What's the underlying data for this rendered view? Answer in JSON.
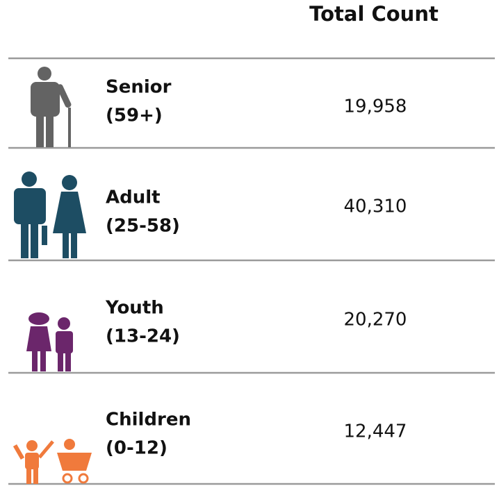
{
  "header": {
    "title": "Total Count"
  },
  "rows": [
    {
      "label": "Senior",
      "range": "(59+)",
      "count": "19,958"
    },
    {
      "label": "Adult",
      "range": "(25-58)",
      "count": "40,310"
    },
    {
      "label": "Youth",
      "range": "(13-24)",
      "count": "20,270"
    },
    {
      "label": "Children",
      "range": "(0-12)",
      "count": "12,447"
    }
  ]
}
